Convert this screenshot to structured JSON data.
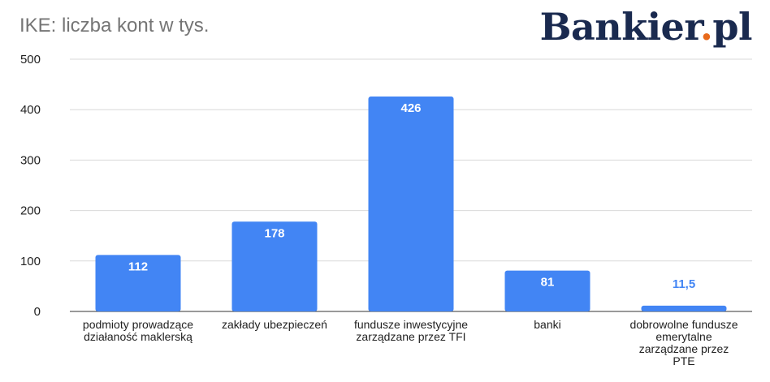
{
  "brand": {
    "name": "Bankier",
    "dot": ".",
    "suffix": "pl",
    "accent_color": "#e86a1c",
    "text_color": "#1a2a4f"
  },
  "chart_data": {
    "type": "bar",
    "title": "IKE: liczba kont w tys.",
    "categories": [
      [
        "podmioty prowadzące",
        "działaność maklerską"
      ],
      [
        "zakłady ubezpieczeń"
      ],
      [
        "fundusze inwestycyjne",
        "zarządzane przez TFI"
      ],
      [
        "banki"
      ],
      [
        "dobrowolne fundusze",
        "emerytalne",
        "zarządzane przez",
        "PTE"
      ]
    ],
    "values": [
      112,
      178,
      426,
      81,
      11.5
    ],
    "data_labels": [
      "112",
      "178",
      "426",
      "81",
      "11,5"
    ],
    "ylim": [
      0,
      500
    ],
    "yticks": [
      0,
      100,
      200,
      300,
      400,
      500
    ],
    "grid": true,
    "bar_color": "#4285f4",
    "label_inside_color": "#ffffff",
    "label_outside_color": "#4285f4"
  }
}
